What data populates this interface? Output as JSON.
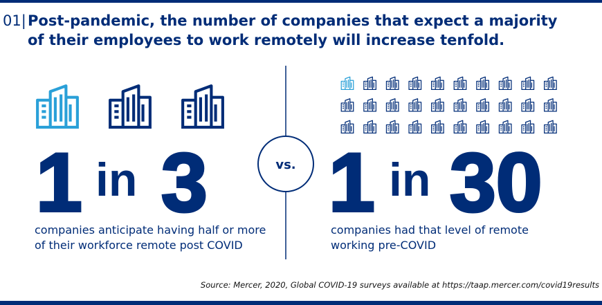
{
  "header": {
    "number": "01|",
    "title_lines": [
      "Post-pandemic, the number of companies that expect a majority",
      "of their employees to work remotely will increase tenfold."
    ]
  },
  "left": {
    "numerator": 1,
    "connector": "in",
    "denominator": 3,
    "caption_lines": [
      "companies anticipate having half or more",
      "of their workforce remote post COVID"
    ]
  },
  "vs": "vs.",
  "right": {
    "numerator": 1,
    "connector": "in",
    "denominator": 30,
    "caption_lines": [
      "companies had that level of remote",
      "working pre-COVID"
    ]
  },
  "source": "Source: Mercer, 2020, Global COVID-19 surveys available at https://taap.mercer.com/covid19results"
}
